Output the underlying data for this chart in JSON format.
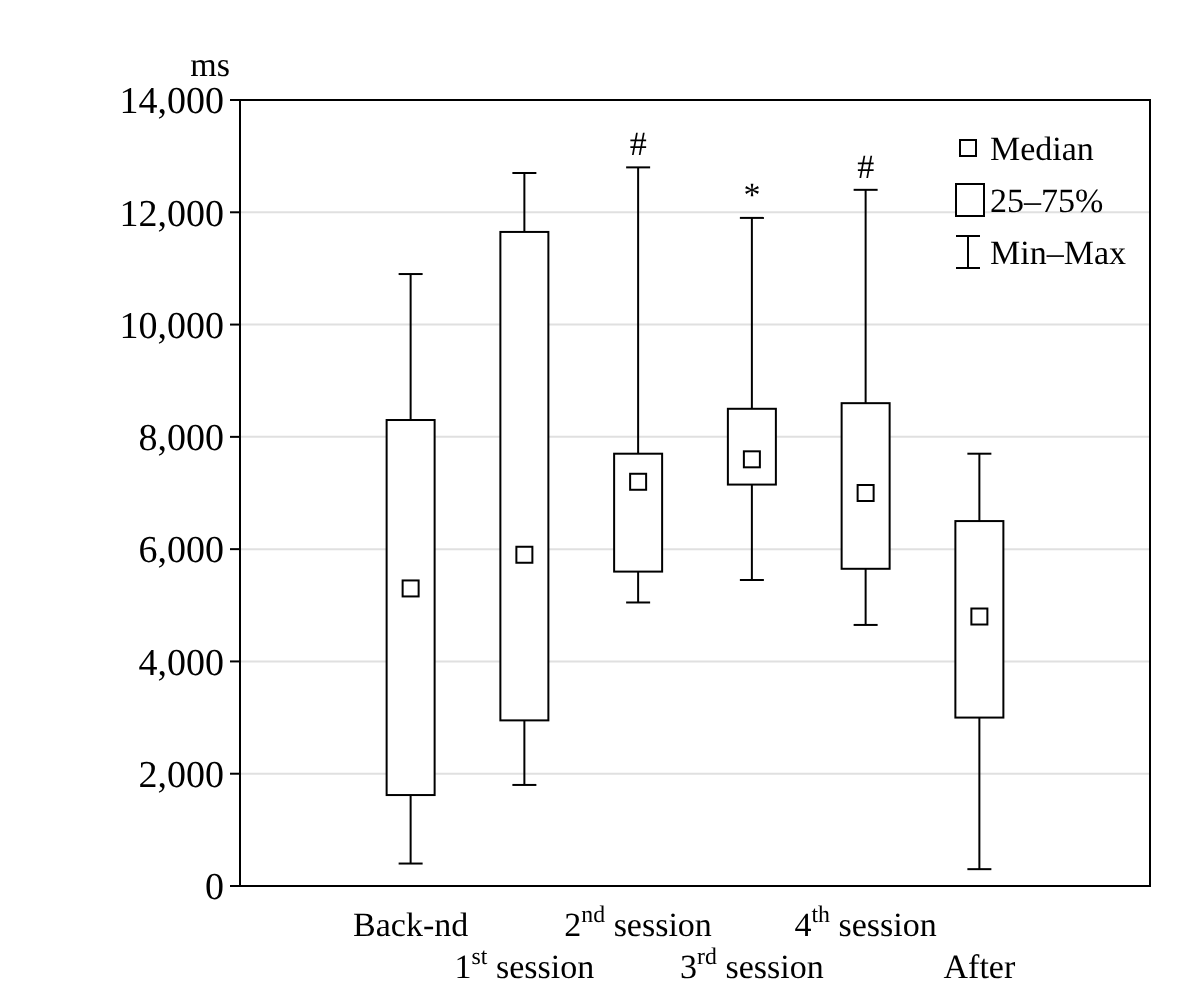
{
  "chart_data": {
    "type": "box",
    "ylabel": "ms",
    "categories": [
      null,
      "Back-nd",
      "1$^{st}$ session",
      "2$^{nd}$ session",
      "3$^{rd}$ session",
      "4$^{th}$ session",
      "After",
      null
    ],
    "boxes": [
      null,
      {
        "low": 400,
        "q1": 1620,
        "median": 5300,
        "q3": 8300,
        "high": 10900
      },
      {
        "low": 1800,
        "q1": 2950,
        "median": 5900,
        "q3": 11650,
        "high": 12700
      },
      {
        "low": 5050,
        "q1": 5600,
        "median": 7200,
        "q3": 7700,
        "high": 12800
      },
      {
        "low": 5450,
        "q1": 7150,
        "median": 7600,
        "q3": 8500,
        "high": 11900
      },
      {
        "low": 4650,
        "q1": 5650,
        "median": 7000,
        "q3": 8600,
        "high": 12400
      },
      {
        "low": 300,
        "q1": 3000,
        "median": 4800,
        "q3": 6500,
        "high": 7700
      },
      null
    ],
    "ylim": [
      0,
      14000
    ],
    "yticks": [
      {
        "value": 0,
        "label": "0"
      },
      {
        "value": 2000,
        "label": "2,000"
      },
      {
        "value": 4000,
        "label": "4,000"
      },
      {
        "value": 6000,
        "label": "6,000"
      },
      {
        "value": 8000,
        "label": "8,000"
      },
      {
        "value": 10000,
        "label": "10,000"
      },
      {
        "value": 12000,
        "label": "12,000"
      },
      {
        "value": 14000,
        "label": "14,000"
      }
    ],
    "grid": "y",
    "annotations": [
      "Median",
      "25–75%",
      "Min–Max",
      {
        "text": "#",
        "x": "2$^{nd}$ session",
        "y": 12800
      },
      {
        "text": "*",
        "x": "3$^{rd}$ session",
        "y": 11900
      },
      {
        "text": "#",
        "x": "4$^{th}$ session",
        "y": 12400
      }
    ]
  }
}
